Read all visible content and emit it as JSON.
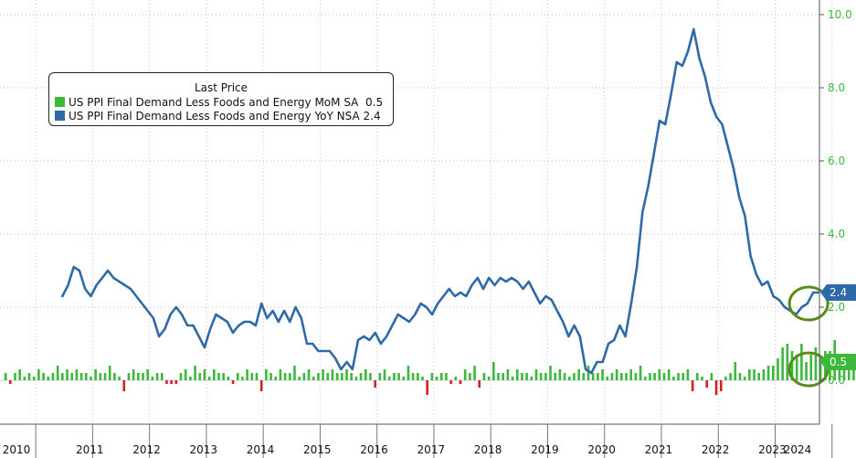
{
  "chart_data": {
    "type": "bar+line",
    "legend": {
      "title": "Last Price",
      "entries": [
        {
          "label": "US PPI Final Demand Less Foods and Energy MoM SA",
          "last": "0.5",
          "color": "#3cb83c"
        },
        {
          "label": "US PPI Final Demand Less Foods and Energy YoY NSA",
          "last": "2.4",
          "color": "#2f6aa8"
        }
      ]
    },
    "y_axis": {
      "position": "right",
      "ylim": [
        -1.2,
        10.4
      ],
      "ticks": [
        "10.0",
        "8.0",
        "6.0",
        "4.0",
        "2.0",
        "0.0"
      ],
      "tick_values": [
        10,
        8,
        6,
        4,
        2,
        0
      ],
      "color": "#3cb83c"
    },
    "x_axis": {
      "labels": [
        "2010",
        "2011",
        "2012",
        "2013",
        "2014",
        "2015",
        "2016",
        "2017",
        "2018",
        "2019",
        "2020",
        "2021",
        "2022",
        "2023",
        "2024"
      ],
      "label_years": [
        2010,
        2011,
        2012,
        2013,
        2014,
        2015,
        2016,
        2017,
        2018,
        2019,
        2020,
        2021,
        2022,
        2023,
        2024
      ]
    },
    "badges": [
      {
        "text": "2.4",
        "value": 2.4,
        "color": "#2f6aa8"
      },
      {
        "text": "0.5",
        "value": 0.5,
        "color": "#3cb83c"
      }
    ],
    "series_line": {
      "name": "US PPI Final Demand Less Foods and Energy YoY NSA",
      "color": "#2f6aa8",
      "points": [
        [
          2011.0,
          2.3
        ],
        [
          2011.1,
          2.6
        ],
        [
          2011.2,
          3.1
        ],
        [
          2011.3,
          3.0
        ],
        [
          2011.4,
          2.5
        ],
        [
          2011.5,
          2.3
        ],
        [
          2011.6,
          2.6
        ],
        [
          2011.8,
          3.0
        ],
        [
          2011.9,
          2.8
        ],
        [
          2012.0,
          2.7
        ],
        [
          2012.2,
          2.5
        ],
        [
          2012.3,
          2.3
        ],
        [
          2012.4,
          2.1
        ],
        [
          2012.6,
          1.7
        ],
        [
          2012.7,
          1.2
        ],
        [
          2012.8,
          1.4
        ],
        [
          2012.9,
          1.8
        ],
        [
          2013.0,
          2.0
        ],
        [
          2013.1,
          1.8
        ],
        [
          2013.2,
          1.5
        ],
        [
          2013.3,
          1.5
        ],
        [
          2013.4,
          1.2
        ],
        [
          2013.5,
          0.9
        ],
        [
          2013.6,
          1.4
        ],
        [
          2013.7,
          1.8
        ],
        [
          2013.8,
          1.7
        ],
        [
          2013.9,
          1.6
        ],
        [
          2014.0,
          1.3
        ],
        [
          2014.1,
          1.5
        ],
        [
          2014.2,
          1.6
        ],
        [
          2014.3,
          1.6
        ],
        [
          2014.4,
          1.5
        ],
        [
          2014.5,
          2.1
        ],
        [
          2014.6,
          1.7
        ],
        [
          2014.7,
          1.9
        ],
        [
          2014.8,
          1.6
        ],
        [
          2014.9,
          1.9
        ],
        [
          2015.0,
          1.6
        ],
        [
          2015.1,
          2.0
        ],
        [
          2015.2,
          1.7
        ],
        [
          2015.3,
          1.0
        ],
        [
          2015.4,
          1.0
        ],
        [
          2015.5,
          0.8
        ],
        [
          2015.6,
          0.8
        ],
        [
          2015.7,
          0.8
        ],
        [
          2015.8,
          0.6
        ],
        [
          2015.9,
          0.3
        ],
        [
          2016.0,
          0.5
        ],
        [
          2016.1,
          0.3
        ],
        [
          2016.2,
          1.1
        ],
        [
          2016.3,
          1.2
        ],
        [
          2016.4,
          1.1
        ],
        [
          2016.5,
          1.3
        ],
        [
          2016.6,
          1.0
        ],
        [
          2016.7,
          1.2
        ],
        [
          2016.8,
          1.5
        ],
        [
          2016.9,
          1.8
        ],
        [
          2017.0,
          1.7
        ],
        [
          2017.1,
          1.6
        ],
        [
          2017.2,
          1.8
        ],
        [
          2017.3,
          2.1
        ],
        [
          2017.4,
          2.0
        ],
        [
          2017.5,
          1.8
        ],
        [
          2017.6,
          2.1
        ],
        [
          2017.7,
          2.3
        ],
        [
          2017.8,
          2.5
        ],
        [
          2017.9,
          2.3
        ],
        [
          2018.0,
          2.4
        ],
        [
          2018.1,
          2.3
        ],
        [
          2018.2,
          2.6
        ],
        [
          2018.3,
          2.8
        ],
        [
          2018.4,
          2.5
        ],
        [
          2018.5,
          2.8
        ],
        [
          2018.6,
          2.6
        ],
        [
          2018.7,
          2.8
        ],
        [
          2018.8,
          2.7
        ],
        [
          2018.9,
          2.8
        ],
        [
          2019.0,
          2.7
        ],
        [
          2019.1,
          2.5
        ],
        [
          2019.2,
          2.7
        ],
        [
          2019.3,
          2.4
        ],
        [
          2019.4,
          2.1
        ],
        [
          2019.5,
          2.3
        ],
        [
          2019.6,
          2.2
        ],
        [
          2019.7,
          1.9
        ],
        [
          2019.8,
          1.6
        ],
        [
          2019.9,
          1.2
        ],
        [
          2020.0,
          1.5
        ],
        [
          2020.1,
          1.2
        ],
        [
          2020.2,
          0.3
        ],
        [
          2020.3,
          0.2
        ],
        [
          2020.4,
          0.5
        ],
        [
          2020.5,
          0.5
        ],
        [
          2020.6,
          1.0
        ],
        [
          2020.7,
          1.1
        ],
        [
          2020.8,
          1.5
        ],
        [
          2020.9,
          1.2
        ],
        [
          2021.0,
          2.1
        ],
        [
          2021.1,
          3.1
        ],
        [
          2021.2,
          4.6
        ],
        [
          2021.3,
          5.3
        ],
        [
          2021.4,
          6.2
        ],
        [
          2021.5,
          7.1
        ],
        [
          2021.6,
          7.0
        ],
        [
          2021.7,
          7.8
        ],
        [
          2021.8,
          8.7
        ],
        [
          2021.9,
          8.6
        ],
        [
          2022.0,
          9.0
        ],
        [
          2022.1,
          9.6
        ],
        [
          2022.2,
          8.8
        ],
        [
          2022.3,
          8.3
        ],
        [
          2022.4,
          7.6
        ],
        [
          2022.5,
          7.2
        ],
        [
          2022.6,
          7.0
        ],
        [
          2022.7,
          6.4
        ],
        [
          2022.8,
          5.8
        ],
        [
          2022.9,
          5.0
        ],
        [
          2023.0,
          4.5
        ],
        [
          2023.1,
          3.4
        ],
        [
          2023.2,
          2.9
        ],
        [
          2023.3,
          2.6
        ],
        [
          2023.4,
          2.7
        ],
        [
          2023.5,
          2.3
        ],
        [
          2023.6,
          2.2
        ],
        [
          2023.7,
          2.0
        ],
        [
          2023.8,
          1.9
        ],
        [
          2023.9,
          1.8
        ],
        [
          2024.0,
          2.0
        ],
        [
          2024.1,
          2.1
        ],
        [
          2024.2,
          2.4
        ],
        [
          2024.3,
          2.4
        ]
      ]
    },
    "series_bars": {
      "name": "US PPI Final Demand Less Foods and Energy MoM SA",
      "pos_color": "#3cb83c",
      "neg_color": "#d42020",
      "start": 2010.0,
      "step": 0.0833,
      "values": [
        0.2,
        -0.1,
        0.2,
        0.3,
        0.1,
        0.2,
        0.1,
        0.3,
        0.2,
        0.1,
        0.2,
        0.4,
        0.2,
        0.3,
        0.2,
        0.3,
        0.2,
        0.2,
        0.1,
        0.3,
        0.2,
        0.2,
        0.4,
        0.2,
        0.1,
        -0.3,
        0.2,
        0.3,
        0.2,
        0.2,
        0.3,
        0.1,
        0.2,
        0.2,
        -0.1,
        -0.1,
        -0.1,
        0.2,
        0.3,
        0.1,
        0.4,
        0.2,
        0.3,
        0.1,
        0.3,
        0.2,
        0.2,
        0.1,
        -0.1,
        0.2,
        0.1,
        0.3,
        0.2,
        0.2,
        -0.3,
        0.3,
        0.2,
        0.1,
        0.3,
        0.2,
        0.2,
        0.4,
        0.1,
        0.2,
        0.3,
        0.1,
        0.2,
        0.3,
        0.2,
        0.3,
        0.2,
        0.2,
        0.3,
        0.2,
        0.1,
        0.2,
        0.3,
        0.2,
        -0.2,
        0.2,
        0.3,
        0.1,
        0.2,
        0.2,
        0.1,
        0.4,
        0.2,
        0.2,
        0.1,
        -0.4,
        0.2,
        0.1,
        0.2,
        0.2,
        -0.1,
        0.1,
        -0.1,
        0.3,
        0.2,
        0.4,
        -0.2,
        0.2,
        0.1,
        0.5,
        0.2,
        0.2,
        0.3,
        0.1,
        0.3,
        0.2,
        0.2,
        0.1,
        0.3,
        0.2,
        0.2,
        0.4,
        0.2,
        0.3,
        0.2,
        0.1,
        0.2,
        0.3,
        0.2,
        0.4,
        0.2,
        0.2,
        0.3,
        0.1,
        0.2,
        0.3,
        0.2,
        0.2,
        0.3,
        0.2,
        0.4,
        0.1,
        0.2,
        0.2,
        0.3,
        0.2,
        0.3,
        0.1,
        0.2,
        0.2,
        0.3,
        -0.3,
        0.2,
        0.1,
        -0.2,
        0.2,
        -0.4,
        -0.3,
        0.1,
        0.2,
        0.5,
        0.2,
        0.1,
        0.3,
        0.3,
        0.2,
        0.3,
        0.4,
        0.4,
        0.6,
        0.9,
        1.0,
        0.8,
        0.7,
        1.0,
        0.5,
        0.7,
        0.9,
        0.6,
        0.8,
        0.8,
        1.1,
        0.6,
        0.4,
        0.7,
        0.6,
        0.3,
        0.3,
        0.4,
        0.3,
        0.2,
        0.4,
        0.2,
        0.3,
        0.2,
        0.1,
        0.3,
        0.2,
        0.1,
        0.2,
        0.2,
        0.6,
        0.1,
        0.2,
        0.1,
        0.2,
        0.1,
        0.5,
        0.3,
        0.4,
        0.1,
        0.5
      ]
    },
    "highlights": [
      {
        "x": 2024.12,
        "y": 2.1
      },
      {
        "x": 2024.12,
        "y": 0.3
      }
    ]
  }
}
